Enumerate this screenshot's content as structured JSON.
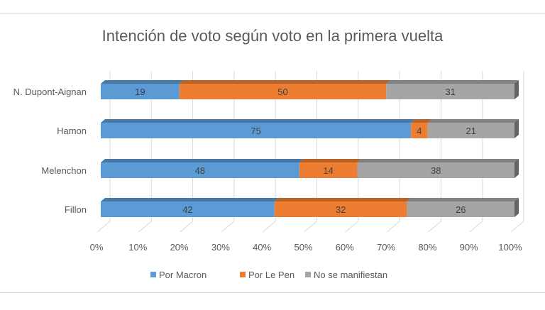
{
  "chart_data": {
    "type": "bar",
    "orientation": "horizontal-stacked-100",
    "title": "Intención de voto según voto en la primera vuelta",
    "categories": [
      "N. Dupont-Aignan",
      "Hamon",
      "Melenchon",
      "Fillon"
    ],
    "series": [
      {
        "name": "Por Macron",
        "color": "#5b9bd5",
        "values": [
          19,
          75,
          48,
          42
        ]
      },
      {
        "name": "Por Le Pen",
        "color": "#ed7d31",
        "values": [
          50,
          4,
          14,
          32
        ]
      },
      {
        "name": "No se manifiestan",
        "color": "#a5a5a5",
        "values": [
          31,
          21,
          38,
          26
        ]
      }
    ],
    "xticks": [
      "0%",
      "10%",
      "20%",
      "30%",
      "40%",
      "50%",
      "60%",
      "70%",
      "80%",
      "90%",
      "100%"
    ],
    "xlim": [
      0,
      100
    ],
    "grid": true,
    "legend": "bottom"
  }
}
